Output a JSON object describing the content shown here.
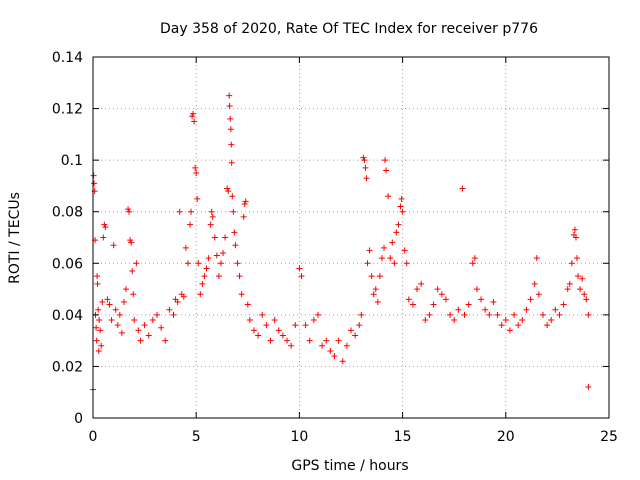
{
  "chart_data": {
    "type": "scatter",
    "title": "Day 358 of 2020, Rate Of TEC Index for receiver p776",
    "xlabel": "GPS time / hours",
    "ylabel": "ROTI / TECUs",
    "xlim": [
      0,
      25
    ],
    "ylim": [
      0,
      0.14
    ],
    "x_ticks": [
      "0",
      "5",
      "10",
      "15",
      "20",
      "25"
    ],
    "y_ticks": [
      "0",
      "0.02",
      "0.04",
      "0.06",
      "0.08",
      "0.1",
      "0.12",
      "0.14"
    ],
    "grid": true,
    "marker": "plus",
    "marker_color": "#ff0000",
    "series": [
      {
        "points": [
          [
            0.0,
            0.011
          ],
          [
            0.03,
            0.094
          ],
          [
            0.05,
            0.091
          ],
          [
            0.08,
            0.088
          ],
          [
            0.1,
            0.069
          ],
          [
            0.12,
            0.04
          ],
          [
            0.15,
            0.035
          ],
          [
            0.18,
            0.03
          ],
          [
            0.2,
            0.055
          ],
          [
            0.22,
            0.052
          ],
          [
            0.25,
            0.042
          ],
          [
            0.28,
            0.026
          ],
          [
            0.3,
            0.038
          ],
          [
            0.35,
            0.034
          ],
          [
            0.4,
            0.028
          ],
          [
            0.45,
            0.045
          ],
          [
            0.5,
            0.07
          ],
          [
            0.55,
            0.075
          ],
          [
            0.6,
            0.074
          ],
          [
            0.7,
            0.046
          ],
          [
            0.8,
            0.044
          ],
          [
            0.9,
            0.038
          ],
          [
            1.0,
            0.067
          ],
          [
            1.1,
            0.042
          ],
          [
            1.2,
            0.036
          ],
          [
            1.3,
            0.04
          ],
          [
            1.4,
            0.033
          ],
          [
            1.5,
            0.045
          ],
          [
            1.6,
            0.05
          ],
          [
            1.7,
            0.081
          ],
          [
            1.75,
            0.08
          ],
          [
            1.8,
            0.069
          ],
          [
            1.85,
            0.068
          ],
          [
            1.9,
            0.057
          ],
          [
            1.95,
            0.048
          ],
          [
            2.0,
            0.038
          ],
          [
            2.1,
            0.06
          ],
          [
            2.2,
            0.034
          ],
          [
            2.3,
            0.03
          ],
          [
            2.5,
            0.036
          ],
          [
            2.7,
            0.032
          ],
          [
            2.9,
            0.038
          ],
          [
            3.1,
            0.04
          ],
          [
            3.3,
            0.035
          ],
          [
            3.5,
            0.03
          ],
          [
            3.7,
            0.042
          ],
          [
            3.9,
            0.04
          ],
          [
            4.0,
            0.046
          ],
          [
            4.1,
            0.045
          ],
          [
            4.2,
            0.08
          ],
          [
            4.3,
            0.048
          ],
          [
            4.4,
            0.047
          ],
          [
            4.5,
            0.066
          ],
          [
            4.6,
            0.06
          ],
          [
            4.7,
            0.075
          ],
          [
            4.75,
            0.08
          ],
          [
            4.8,
            0.117
          ],
          [
            4.85,
            0.118
          ],
          [
            4.9,
            0.115
          ],
          [
            4.95,
            0.097
          ],
          [
            5.0,
            0.095
          ],
          [
            5.05,
            0.085
          ],
          [
            5.1,
            0.06
          ],
          [
            5.2,
            0.048
          ],
          [
            5.3,
            0.052
          ],
          [
            5.4,
            0.055
          ],
          [
            5.5,
            0.058
          ],
          [
            5.6,
            0.062
          ],
          [
            5.7,
            0.075
          ],
          [
            5.75,
            0.08
          ],
          [
            5.8,
            0.078
          ],
          [
            5.9,
            0.07
          ],
          [
            6.0,
            0.063
          ],
          [
            6.1,
            0.055
          ],
          [
            6.2,
            0.06
          ],
          [
            6.3,
            0.064
          ],
          [
            6.4,
            0.07
          ],
          [
            6.5,
            0.089
          ],
          [
            6.55,
            0.088
          ],
          [
            6.6,
            0.125
          ],
          [
            6.62,
            0.121
          ],
          [
            6.65,
            0.116
          ],
          [
            6.68,
            0.112
          ],
          [
            6.7,
            0.106
          ],
          [
            6.72,
            0.099
          ],
          [
            6.75,
            0.086
          ],
          [
            6.8,
            0.08
          ],
          [
            6.85,
            0.072
          ],
          [
            6.9,
            0.067
          ],
          [
            7.0,
            0.06
          ],
          [
            7.1,
            0.055
          ],
          [
            7.2,
            0.048
          ],
          [
            7.3,
            0.078
          ],
          [
            7.35,
            0.083
          ],
          [
            7.4,
            0.084
          ],
          [
            7.5,
            0.044
          ],
          [
            7.6,
            0.038
          ],
          [
            7.8,
            0.034
          ],
          [
            8.0,
            0.032
          ],
          [
            8.2,
            0.04
          ],
          [
            8.4,
            0.036
          ],
          [
            8.6,
            0.03
          ],
          [
            8.8,
            0.038
          ],
          [
            9.0,
            0.034
          ],
          [
            9.2,
            0.032
          ],
          [
            9.4,
            0.03
          ],
          [
            9.6,
            0.028
          ],
          [
            9.8,
            0.036
          ],
          [
            10.0,
            0.058
          ],
          [
            10.1,
            0.055
          ],
          [
            10.3,
            0.036
          ],
          [
            10.5,
            0.03
          ],
          [
            10.7,
            0.038
          ],
          [
            10.9,
            0.04
          ],
          [
            11.1,
            0.028
          ],
          [
            11.3,
            0.03
          ],
          [
            11.5,
            0.026
          ],
          [
            11.7,
            0.024
          ],
          [
            11.9,
            0.03
          ],
          [
            12.1,
            0.022
          ],
          [
            12.3,
            0.028
          ],
          [
            12.5,
            0.034
          ],
          [
            12.7,
            0.032
          ],
          [
            12.9,
            0.036
          ],
          [
            13.0,
            0.04
          ],
          [
            13.1,
            0.101
          ],
          [
            13.15,
            0.1
          ],
          [
            13.2,
            0.097
          ],
          [
            13.25,
            0.093
          ],
          [
            13.3,
            0.06
          ],
          [
            13.4,
            0.065
          ],
          [
            13.5,
            0.055
          ],
          [
            13.6,
            0.048
          ],
          [
            13.7,
            0.05
          ],
          [
            13.8,
            0.045
          ],
          [
            13.9,
            0.055
          ],
          [
            14.0,
            0.062
          ],
          [
            14.1,
            0.066
          ],
          [
            14.15,
            0.1
          ],
          [
            14.2,
            0.096
          ],
          [
            14.3,
            0.086
          ],
          [
            14.4,
            0.062
          ],
          [
            14.5,
            0.068
          ],
          [
            14.6,
            0.06
          ],
          [
            14.7,
            0.072
          ],
          [
            14.8,
            0.075
          ],
          [
            14.9,
            0.082
          ],
          [
            14.95,
            0.085
          ],
          [
            15.0,
            0.08
          ],
          [
            15.1,
            0.065
          ],
          [
            15.2,
            0.06
          ],
          [
            15.3,
            0.046
          ],
          [
            15.5,
            0.044
          ],
          [
            15.7,
            0.05
          ],
          [
            15.9,
            0.052
          ],
          [
            16.1,
            0.038
          ],
          [
            16.3,
            0.04
          ],
          [
            16.5,
            0.044
          ],
          [
            16.7,
            0.05
          ],
          [
            16.9,
            0.048
          ],
          [
            17.1,
            0.046
          ],
          [
            17.3,
            0.04
          ],
          [
            17.5,
            0.038
          ],
          [
            17.7,
            0.042
          ],
          [
            17.9,
            0.089
          ],
          [
            18.0,
            0.04
          ],
          [
            18.2,
            0.044
          ],
          [
            18.4,
            0.06
          ],
          [
            18.5,
            0.062
          ],
          [
            18.6,
            0.05
          ],
          [
            18.8,
            0.046
          ],
          [
            19.0,
            0.042
          ],
          [
            19.2,
            0.04
          ],
          [
            19.4,
            0.045
          ],
          [
            19.6,
            0.04
          ],
          [
            19.8,
            0.036
          ],
          [
            20.0,
            0.038
          ],
          [
            20.2,
            0.034
          ],
          [
            20.4,
            0.04
          ],
          [
            20.6,
            0.036
          ],
          [
            20.8,
            0.038
          ],
          [
            21.0,
            0.042
          ],
          [
            21.2,
            0.046
          ],
          [
            21.4,
            0.052
          ],
          [
            21.5,
            0.062
          ],
          [
            21.6,
            0.048
          ],
          [
            21.8,
            0.04
          ],
          [
            22.0,
            0.036
          ],
          [
            22.2,
            0.038
          ],
          [
            22.4,
            0.042
          ],
          [
            22.6,
            0.04
          ],
          [
            22.8,
            0.044
          ],
          [
            23.0,
            0.05
          ],
          [
            23.1,
            0.052
          ],
          [
            23.2,
            0.06
          ],
          [
            23.3,
            0.071
          ],
          [
            23.35,
            0.073
          ],
          [
            23.4,
            0.07
          ],
          [
            23.45,
            0.062
          ],
          [
            23.5,
            0.055
          ],
          [
            23.6,
            0.05
          ],
          [
            23.7,
            0.054
          ],
          [
            23.8,
            0.048
          ],
          [
            23.9,
            0.046
          ],
          [
            24.0,
            0.04
          ],
          [
            24.0,
            0.012
          ]
        ]
      }
    ]
  }
}
